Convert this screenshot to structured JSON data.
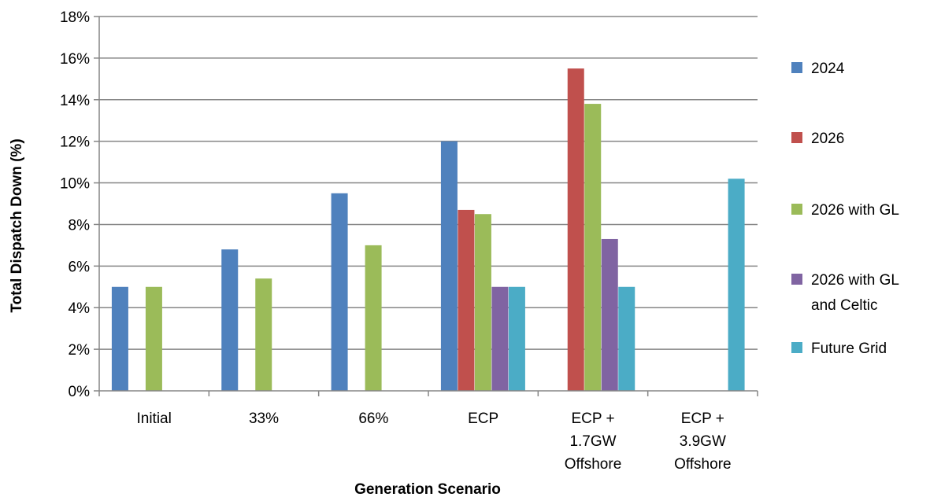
{
  "chart_data": {
    "type": "bar",
    "title": "",
    "xlabel": "Generation Scenario",
    "ylabel": "Total Dispatch Down (%)",
    "ylim": [
      0,
      18
    ],
    "yticks": [
      0,
      2,
      4,
      6,
      8,
      10,
      12,
      14,
      16,
      18
    ],
    "ytick_suffix": "%",
    "grid": true,
    "legend_position": "right",
    "categories": [
      "Initial",
      "33%",
      "66%",
      "ECP",
      "ECP + 1.7GW Offshore",
      "ECP + 3.9GW Offshore"
    ],
    "category_lines": [
      [
        "Initial"
      ],
      [
        "33%"
      ],
      [
        "66%"
      ],
      [
        "ECP"
      ],
      [
        "ECP +",
        "1.7GW",
        "Offshore"
      ],
      [
        "ECP +",
        "3.9GW",
        "Offshore"
      ]
    ],
    "series": [
      {
        "name": "2024",
        "color": "#4F81BD",
        "values": [
          5.0,
          6.8,
          9.5,
          12.0,
          null,
          null
        ]
      },
      {
        "name": "2026",
        "color": "#C0504D",
        "values": [
          null,
          null,
          null,
          8.7,
          15.5,
          null
        ]
      },
      {
        "name": "2026 with GL",
        "color": "#9BBB59",
        "values": [
          5.0,
          5.4,
          7.0,
          8.5,
          13.8,
          null
        ]
      },
      {
        "name": "2026 with GL and Celtic",
        "color": "#8064A2",
        "values": [
          null,
          null,
          null,
          5.0,
          7.3,
          null
        ]
      },
      {
        "name": "Future Grid",
        "color": "#4BACC6",
        "values": [
          null,
          null,
          null,
          5.0,
          5.0,
          10.2
        ]
      }
    ],
    "legend_lines": [
      [
        "2024"
      ],
      [
        "2026"
      ],
      [
        "2026 with GL"
      ],
      [
        "2026 with GL",
        "and Celtic"
      ],
      [
        "Future Grid"
      ]
    ]
  }
}
